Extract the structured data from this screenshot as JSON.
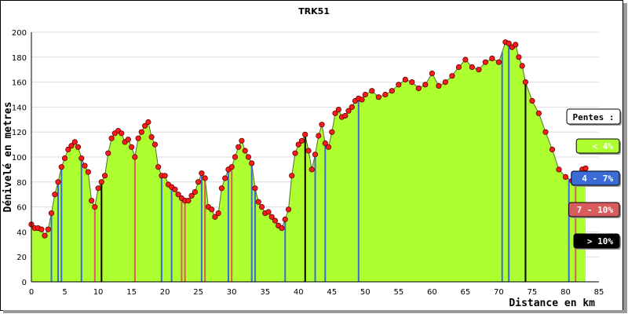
{
  "chart_data": {
    "type": "area",
    "title": "TRK51",
    "xlabel": "Distance en km",
    "ylabel": "Dénivelé en metres",
    "xlim": [
      0,
      85
    ],
    "ylim": [
      0,
      200
    ],
    "x_ticks": [
      "0",
      "5",
      "10",
      "15",
      "20",
      "25",
      "30",
      "35",
      "40",
      "45",
      "50",
      "55",
      "60",
      "65",
      "70",
      "75",
      "80",
      "85"
    ],
    "y_ticks": [
      "0",
      "20",
      "40",
      "60",
      "80",
      "100",
      "120",
      "140",
      "160",
      "180",
      "200"
    ],
    "grid": true,
    "fill_color": "#adff2f",
    "marker_color": "#ff1a1a",
    "legend": {
      "title": "Pentes :",
      "placement": "right",
      "items": [
        {
          "label": "< 4%",
          "color": "#adff2f"
        },
        {
          "label": "4 - 7%",
          "color": "#3a6bd6"
        },
        {
          "label": "7 - 10%",
          "color": "#d85c5c"
        },
        {
          "label": "> 10%",
          "color": "#000000"
        }
      ]
    },
    "profile": [
      [
        0,
        46
      ],
      [
        0.5,
        43
      ],
      [
        1,
        43
      ],
      [
        1.5,
        42
      ],
      [
        2,
        37
      ],
      [
        2.5,
        42
      ],
      [
        3,
        55
      ],
      [
        3.5,
        70
      ],
      [
        4,
        80
      ],
      [
        4.5,
        92
      ],
      [
        5,
        99
      ],
      [
        5.5,
        106
      ],
      [
        6,
        109
      ],
      [
        6.5,
        112
      ],
      [
        7,
        108
      ],
      [
        7.5,
        99
      ],
      [
        8,
        93
      ],
      [
        8.5,
        88
      ],
      [
        9,
        65
      ],
      [
        9.5,
        60
      ],
      [
        10,
        75
      ],
      [
        10.5,
        80
      ],
      [
        11,
        85
      ],
      [
        11.5,
        103
      ],
      [
        12,
        115
      ],
      [
        12.5,
        119
      ],
      [
        13,
        121
      ],
      [
        13.5,
        119
      ],
      [
        14,
        112
      ],
      [
        14.5,
        114
      ],
      [
        15,
        108
      ],
      [
        15.5,
        100
      ],
      [
        16,
        115
      ],
      [
        16.5,
        120
      ],
      [
        17,
        125
      ],
      [
        17.5,
        128
      ],
      [
        18,
        116
      ],
      [
        18.5,
        110
      ],
      [
        19,
        92
      ],
      [
        19.5,
        85
      ],
      [
        20,
        85
      ],
      [
        20.5,
        78
      ],
      [
        21,
        76
      ],
      [
        21.5,
        74
      ],
      [
        22,
        70
      ],
      [
        22.5,
        67
      ],
      [
        23,
        65
      ],
      [
        23.5,
        65
      ],
      [
        24,
        69
      ],
      [
        24.5,
        72
      ],
      [
        25,
        80
      ],
      [
        25.5,
        87
      ],
      [
        26,
        83
      ],
      [
        26.5,
        60
      ],
      [
        27,
        58
      ],
      [
        27.5,
        52
      ],
      [
        28,
        55
      ],
      [
        28.5,
        75
      ],
      [
        29,
        83
      ],
      [
        29.5,
        90
      ],
      [
        30,
        92
      ],
      [
        30.5,
        100
      ],
      [
        31,
        108
      ],
      [
        31.5,
        113
      ],
      [
        32,
        105
      ],
      [
        32.5,
        100
      ],
      [
        33,
        95
      ],
      [
        33.5,
        75
      ],
      [
        34,
        64
      ],
      [
        34.5,
        60
      ],
      [
        35,
        55
      ],
      [
        35.5,
        56
      ],
      [
        36,
        52
      ],
      [
        36.5,
        49
      ],
      [
        37,
        45
      ],
      [
        37.5,
        43
      ],
      [
        38,
        50
      ],
      [
        38.5,
        58
      ],
      [
        39,
        85
      ],
      [
        39.5,
        103
      ],
      [
        40,
        110
      ],
      [
        40.5,
        113
      ],
      [
        41,
        118
      ],
      [
        41.5,
        105
      ],
      [
        42,
        90
      ],
      [
        42.5,
        102
      ],
      [
        43,
        117
      ],
      [
        43.5,
        126
      ],
      [
        44,
        111
      ],
      [
        44.5,
        108
      ],
      [
        45,
        120
      ],
      [
        45.5,
        135
      ],
      [
        46,
        138
      ],
      [
        46.5,
        132
      ],
      [
        47,
        133
      ],
      [
        47.5,
        137
      ],
      [
        48,
        140
      ],
      [
        48.5,
        145
      ],
      [
        49,
        147
      ],
      [
        49.5,
        146
      ],
      [
        50,
        150
      ],
      [
        51,
        153
      ],
      [
        52,
        148
      ],
      [
        53,
        150
      ],
      [
        54,
        153
      ],
      [
        55,
        158
      ],
      [
        56,
        162
      ],
      [
        57,
        160
      ],
      [
        58,
        155
      ],
      [
        59,
        158
      ],
      [
        60,
        167
      ],
      [
        61,
        157
      ],
      [
        62,
        160
      ],
      [
        63,
        165
      ],
      [
        64,
        172
      ],
      [
        65,
        178
      ],
      [
        66,
        172
      ],
      [
        67,
        170
      ],
      [
        68,
        176
      ],
      [
        69,
        179
      ],
      [
        70,
        176
      ],
      [
        71,
        192
      ],
      [
        71.5,
        191
      ],
      [
        72,
        188
      ],
      [
        72.5,
        190
      ],
      [
        73,
        180
      ],
      [
        73.5,
        173
      ],
      [
        74,
        160
      ],
      [
        75,
        145
      ],
      [
        76,
        135
      ],
      [
        77,
        120
      ],
      [
        78,
        106
      ],
      [
        79,
        90
      ],
      [
        80,
        84
      ],
      [
        81,
        81
      ],
      [
        81.5,
        81
      ],
      [
        82,
        85
      ],
      [
        82.5,
        90
      ],
      [
        83,
        91
      ]
    ],
    "segments": [
      {
        "x": 3.0,
        "slope": "4 - 7%"
      },
      {
        "x": 4.0,
        "slope": "4 - 7%"
      },
      {
        "x": 4.5,
        "slope": "4 - 7%"
      },
      {
        "x": 7.5,
        "slope": "4 - 7%"
      },
      {
        "x": 9.5,
        "slope": "7 - 10%"
      },
      {
        "x": 10.5,
        "slope": "> 10%"
      },
      {
        "x": 15.5,
        "slope": "7 - 10%"
      },
      {
        "x": 19.5,
        "slope": "4 - 7%"
      },
      {
        "x": 21.0,
        "slope": "4 - 7%"
      },
      {
        "x": 22.5,
        "slope": "7 - 10%"
      },
      {
        "x": 23.0,
        "slope": "7 - 10%"
      },
      {
        "x": 25.5,
        "slope": "4 - 7%"
      },
      {
        "x": 26.0,
        "slope": "7 - 10%"
      },
      {
        "x": 29.5,
        "slope": "4 - 7%"
      },
      {
        "x": 30.0,
        "slope": "7 - 10%"
      },
      {
        "x": 33.0,
        "slope": "4 - 7%"
      },
      {
        "x": 33.5,
        "slope": "4 - 7%"
      },
      {
        "x": 38.0,
        "slope": "4 - 7%"
      },
      {
        "x": 41.0,
        "slope": "> 10%"
      },
      {
        "x": 42.5,
        "slope": "4 - 7%"
      },
      {
        "x": 44.0,
        "slope": "4 - 7%"
      },
      {
        "x": 49.0,
        "slope": "4 - 7%"
      },
      {
        "x": 70.5,
        "slope": "4 - 7%"
      },
      {
        "x": 71.5,
        "slope": "4 - 7%"
      },
      {
        "x": 74.0,
        "slope": "> 10%"
      },
      {
        "x": 80.5,
        "slope": "4 - 7%"
      },
      {
        "x": 81.5,
        "slope": "7 - 10%"
      }
    ]
  }
}
